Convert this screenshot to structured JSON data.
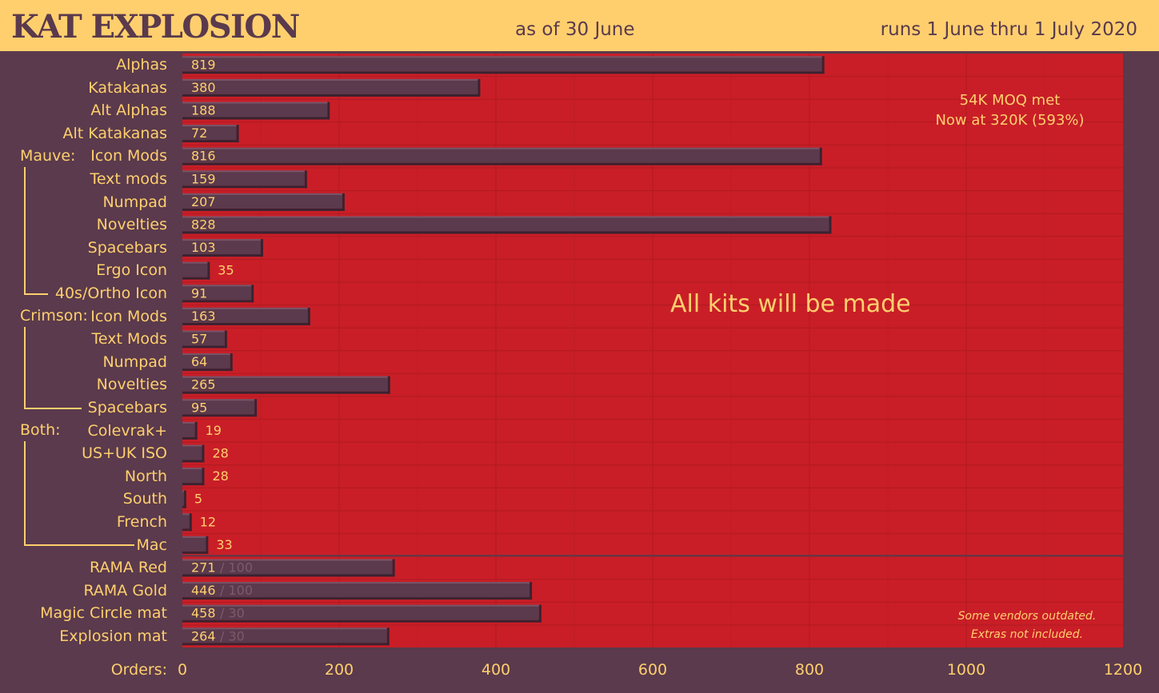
{
  "header": {
    "title": "KAT EXPLOSION",
    "as_of": "as of 30 June",
    "runs": "runs 1 June thru 1 July 2020"
  },
  "annotations": {
    "moq_line1": "54K MOQ met",
    "moq_line2": "Now at 320K (593%)",
    "center": "All kits will be made",
    "footnote_line1": "Some vendors outdated.",
    "footnote_line2": "Extras not included."
  },
  "groups": {
    "mauve": "Mauve:",
    "crimson": "Crimson:",
    "both": "Both:"
  },
  "colors": {
    "background": "#5a3a4c",
    "plot": "#c91e27",
    "bar": "#5a3a4c",
    "text": "#ffcf6e",
    "target_text": "#7d5a6a"
  },
  "chart_data": {
    "type": "bar",
    "orientation": "horizontal",
    "xlabel": "Orders:",
    "xlim": [
      0,
      1200
    ],
    "xticks": [
      0,
      200,
      400,
      600,
      800,
      1000,
      1200
    ],
    "grid": true,
    "categories": [
      "Alphas",
      "Katakanas",
      "Alt Alphas",
      "Alt Katakanas",
      "Icon Mods",
      "Text mods",
      "Numpad",
      "Novelties",
      "Spacebars",
      "Ergo Icon",
      "40s/Ortho Icon",
      "Icon Mods",
      "Text Mods",
      "Numpad",
      "Novelties",
      "Spacebars",
      "Colevrak+",
      "US+UK ISO",
      "North",
      "South",
      "French",
      "Mac",
      "RAMA Red",
      "RAMA Gold",
      "Magic Circle mat",
      "Explosion mat"
    ],
    "values": [
      819,
      380,
      188,
      72,
      816,
      159,
      207,
      828,
      103,
      35,
      91,
      163,
      57,
      64,
      265,
      95,
      19,
      28,
      28,
      5,
      12,
      33,
      271,
      446,
      458,
      264
    ],
    "targets": [
      null,
      null,
      null,
      null,
      null,
      null,
      null,
      null,
      null,
      null,
      null,
      null,
      null,
      null,
      null,
      null,
      null,
      null,
      null,
      null,
      null,
      null,
      "/ 100",
      "/ 100",
      "/ 30",
      "/ 30"
    ]
  }
}
